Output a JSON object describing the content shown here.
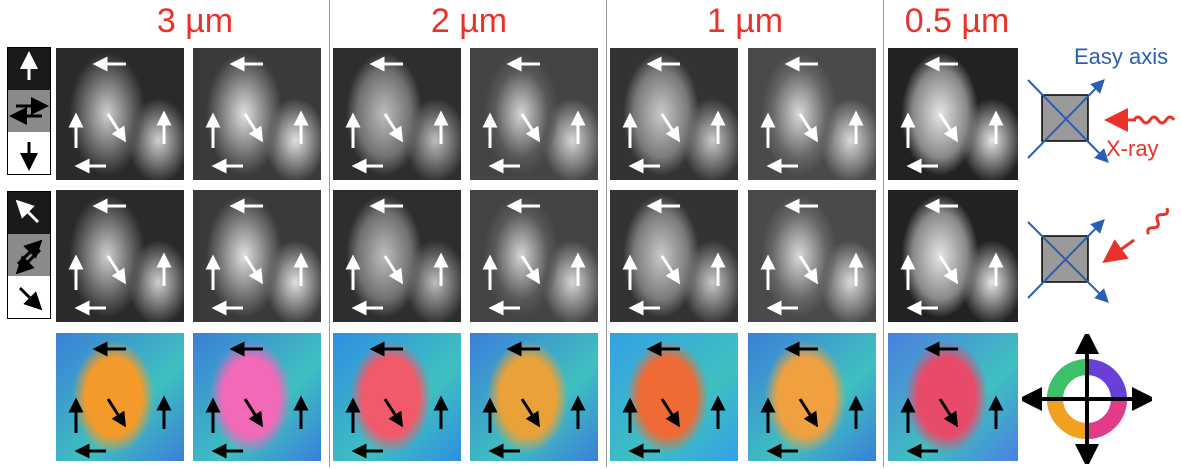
{
  "titles": [
    "3 µm",
    "2 µm",
    "1 µm",
    "0.5 µm"
  ],
  "diagram": {
    "easy_axis_label": "Easy axis",
    "xray_label": "X-ray"
  },
  "colors": {
    "title": "#e8322a",
    "easy_axis": "#2a5fb4",
    "xray": "#e8322a"
  },
  "legend_icons": [
    "up-arrow-icon",
    "left-right-arrows-icon",
    "down-arrow-icon",
    "up-left-arrow-icon",
    "diagonal-arrows-icon",
    "down-right-arrow-icon"
  ]
}
